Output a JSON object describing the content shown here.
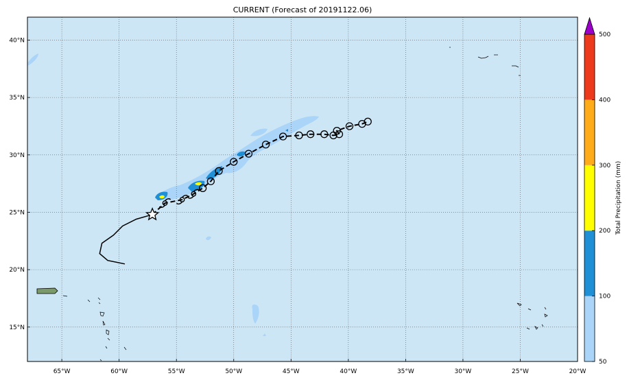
{
  "title": "CURRENT (Forecast of 20191122.06)",
  "map": {
    "ocean_color": "#cde6f5",
    "land_color": "#7a9a6a",
    "lon_ticks": [
      "65°W",
      "60°W",
      "55°W",
      "50°W",
      "45°W",
      "40°W",
      "35°W",
      "30°W",
      "25°W",
      "20°W"
    ],
    "lat_ticks": [
      "40°N",
      "35°N",
      "30°N",
      "25°N",
      "20°N",
      "15°N"
    ],
    "lon_range": [
      -68,
      -20
    ],
    "lat_range": [
      12,
      42
    ],
    "grid": true,
    "gridline_style": "dotted"
  },
  "track": {
    "past_path": [
      [
        -59.5,
        20.5
      ],
      [
        -61,
        20.8
      ],
      [
        -61.7,
        21.4
      ],
      [
        -61.5,
        22.3
      ],
      [
        -60.5,
        23
      ],
      [
        -59.7,
        23.8
      ],
      [
        -58.5,
        24.4
      ],
      [
        -57.1,
        24.8
      ]
    ],
    "current_position": {
      "lon": -57.1,
      "lat": 24.8,
      "icon": "star-icon"
    },
    "forecast_path": [
      [
        -57.1,
        24.8
      ],
      [
        -56,
        25.8
      ],
      [
        -54.5,
        26.1
      ],
      [
        -53.5,
        26.6
      ],
      [
        -52.7,
        27.1
      ],
      [
        -52,
        27.7
      ],
      [
        -51.3,
        28.6
      ],
      [
        -50,
        29.4
      ],
      [
        -48.7,
        30.1
      ],
      [
        -47.2,
        30.9
      ],
      [
        -45.7,
        31.6
      ],
      [
        -44.3,
        31.7
      ],
      [
        -43.3,
        31.8
      ],
      [
        -42.1,
        31.8
      ],
      [
        -41.3,
        31.7
      ],
      [
        -40.8,
        31.8
      ],
      [
        -41,
        32.1
      ],
      [
        -39.9,
        32.5
      ],
      [
        -38.8,
        32.7
      ],
      [
        -38.3,
        32.9
      ]
    ],
    "storm_symbol_points": [
      [
        -56,
        25.8
      ],
      [
        -54.5,
        26.1
      ],
      [
        -53.5,
        26.6
      ]
    ],
    "circle_points": [
      [
        -52.7,
        27.1
      ],
      [
        -52,
        27.7
      ],
      [
        -51.3,
        28.6
      ],
      [
        -50,
        29.4
      ],
      [
        -48.7,
        30.1
      ],
      [
        -47.2,
        30.9
      ],
      [
        -45.7,
        31.6
      ],
      [
        -44.3,
        31.7
      ],
      [
        -43.3,
        31.8
      ],
      [
        -42.1,
        31.8
      ],
      [
        -41.3,
        31.7
      ],
      [
        -40.8,
        31.8
      ],
      [
        -41,
        32.1
      ],
      [
        -39.9,
        32.5
      ],
      [
        -38.8,
        32.7
      ],
      [
        -38.3,
        32.9
      ]
    ]
  },
  "colorbar": {
    "label": "Total Precipitation (mm)",
    "ticks": [
      "50",
      "100",
      "200",
      "300",
      "400",
      "500"
    ],
    "levels": [
      {
        "from": 50,
        "to": 100,
        "color": "#aad4f8"
      },
      {
        "from": 100,
        "to": 200,
        "color": "#1f8fd6"
      },
      {
        "from": 200,
        "to": 300,
        "color": "#ffff00"
      },
      {
        "from": 300,
        "to": 400,
        "color": "#ffab1a"
      },
      {
        "from": 400,
        "to": 500,
        "color": "#ee3a1c"
      }
    ],
    "extend_color": "#9a00c8"
  }
}
